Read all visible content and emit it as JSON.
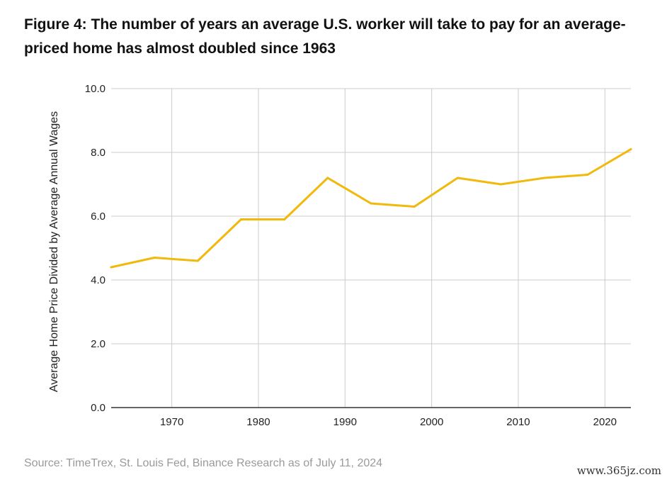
{
  "title": "Figure 4: The number of years an average U.S. worker will take to pay for an average-priced home has almost doubled since 1963",
  "source": "Source: TimeTrex, St. Louis Fed, Binance Research as of July 11, 2024",
  "watermark": "www.365jz.com",
  "chart_data": {
    "type": "line",
    "title": "Figure 4: The number of years an average U.S. worker will take to pay for an average-priced home has almost doubled since 1963",
    "xlabel": "",
    "ylabel": "Average Home Price Divided by Average Annual Wages",
    "xlim": [
      1963,
      2023
    ],
    "ylim": [
      0,
      10
    ],
    "xticks": [
      1970,
      1980,
      1990,
      2000,
      2010,
      2020
    ],
    "yticks": [
      0,
      2,
      4,
      6,
      8,
      10
    ],
    "ytick_labels": [
      "0.0",
      "2.0",
      "4.0",
      "6.0",
      "8.0",
      "10.0"
    ],
    "grid": true,
    "line_color": "#F0B90B",
    "series": [
      {
        "name": "Average Home Price / Average Annual Wages",
        "x": [
          1963,
          1968,
          1973,
          1978,
          1983,
          1988,
          1993,
          1998,
          2003,
          2008,
          2013,
          2018,
          2023
        ],
        "values": [
          4.4,
          4.7,
          4.6,
          5.9,
          5.9,
          7.2,
          6.4,
          6.3,
          7.2,
          7.0,
          7.2,
          7.3,
          8.1
        ]
      }
    ]
  }
}
